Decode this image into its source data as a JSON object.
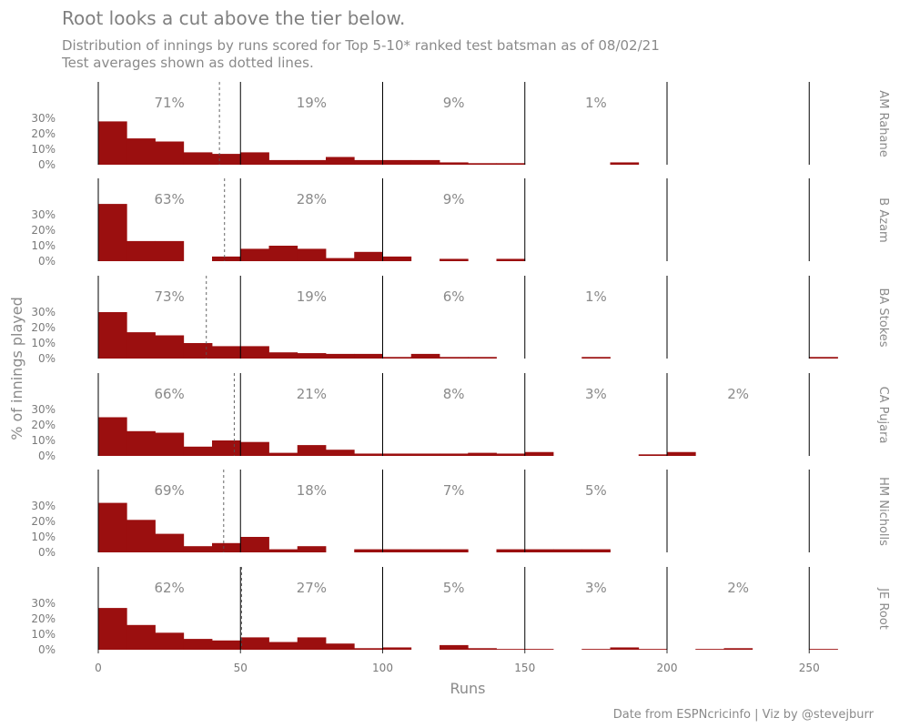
{
  "title": "Root looks a cut above the tier below.",
  "subtitle": [
    "Distribution of innings by runs scored for Top 5-10* ranked test batsman as of 08/02/21",
    "Test averages shown as dotted lines."
  ],
  "caption": "Date from ESPNcricinfo | Viz by @stevejburr",
  "colors": {
    "bar": "#9b0f0f",
    "text": "#8a8a8a",
    "divider": "#000000"
  },
  "chart_data": {
    "type": "bar",
    "xlabel": "Runs",
    "ylabel": "% of innings played",
    "xlim": [
      0,
      265
    ],
    "ylim": [
      0,
      0.33
    ],
    "bin_width": 10,
    "x_ticks": [
      0,
      50,
      100,
      150,
      200,
      250
    ],
    "y_ticks": [
      0,
      0.1,
      0.2,
      0.3
    ],
    "y_tick_labels": [
      "0%",
      "10%",
      "20%",
      "30%"
    ],
    "tier_boundaries": [
      50,
      100,
      150,
      200,
      250
    ],
    "tier_label_x": [
      25,
      75,
      125,
      175,
      225
    ],
    "panels": [
      {
        "name": "AM Rahane",
        "average": 42.6,
        "tier_labels": [
          "71%",
          "19%",
          "9%",
          "1%",
          ""
        ],
        "bin_starts": [
          0,
          10,
          20,
          30,
          40,
          50,
          60,
          70,
          80,
          90,
          100,
          110,
          120,
          130,
          140,
          180
        ],
        "values": [
          0.28,
          0.17,
          0.15,
          0.08,
          0.07,
          0.08,
          0.03,
          0.03,
          0.05,
          0.03,
          0.03,
          0.03,
          0.015,
          0.01,
          0.01,
          0.015
        ]
      },
      {
        "name": "B Azam",
        "average": 44.4,
        "tier_labels": [
          "63%",
          "28%",
          "9%",
          "",
          ""
        ],
        "bin_starts": [
          0,
          10,
          20,
          40,
          50,
          60,
          70,
          80,
          90,
          100,
          120,
          140
        ],
        "values": [
          0.37,
          0.13,
          0.13,
          0.03,
          0.08,
          0.1,
          0.08,
          0.02,
          0.06,
          0.03,
          0.015,
          0.015
        ]
      },
      {
        "name": "BA Stokes",
        "average": 38.0,
        "tier_labels": [
          "73%",
          "19%",
          "6%",
          "1%",
          ""
        ],
        "bin_starts": [
          0,
          10,
          20,
          30,
          40,
          50,
          60,
          70,
          80,
          90,
          100,
          110,
          120,
          130,
          170,
          250
        ],
        "values": [
          0.3,
          0.17,
          0.15,
          0.1,
          0.08,
          0.08,
          0.04,
          0.035,
          0.03,
          0.03,
          0.01,
          0.03,
          0.01,
          0.01,
          0.01,
          0.01
        ]
      },
      {
        "name": "CA Pujara",
        "average": 47.8,
        "tier_labels": [
          "66%",
          "21%",
          "8%",
          "3%",
          "2%"
        ],
        "bin_starts": [
          0,
          10,
          20,
          30,
          40,
          50,
          60,
          70,
          80,
          90,
          100,
          110,
          120,
          130,
          140,
          150,
          190,
          200
        ],
        "values": [
          0.25,
          0.16,
          0.15,
          0.06,
          0.1,
          0.09,
          0.02,
          0.07,
          0.04,
          0.015,
          0.015,
          0.015,
          0.015,
          0.02,
          0.015,
          0.025,
          0.01,
          0.025
        ]
      },
      {
        "name": "HM Nicholls",
        "average": 44.1,
        "tier_labels": [
          "69%",
          "18%",
          "7%",
          "5%",
          ""
        ],
        "bin_starts": [
          0,
          10,
          20,
          30,
          40,
          50,
          60,
          70,
          90,
          100,
          110,
          120,
          140,
          150,
          160,
          170
        ],
        "values": [
          0.32,
          0.21,
          0.12,
          0.04,
          0.06,
          0.1,
          0.02,
          0.04,
          0.02,
          0.02,
          0.02,
          0.02,
          0.02,
          0.02,
          0.02,
          0.02
        ]
      },
      {
        "name": "JE Root",
        "average": 50.4,
        "tier_labels": [
          "62%",
          "27%",
          "5%",
          "3%",
          "2%"
        ],
        "bin_starts": [
          0,
          10,
          20,
          30,
          40,
          50,
          60,
          70,
          80,
          90,
          100,
          120,
          130,
          140,
          150,
          170,
          180,
          190,
          210,
          220,
          250
        ],
        "values": [
          0.27,
          0.16,
          0.11,
          0.07,
          0.06,
          0.08,
          0.05,
          0.08,
          0.04,
          0.01,
          0.015,
          0.03,
          0.01,
          0.005,
          0.005,
          0.005,
          0.015,
          0.005,
          0.005,
          0.01,
          0.005
        ]
      }
    ]
  }
}
